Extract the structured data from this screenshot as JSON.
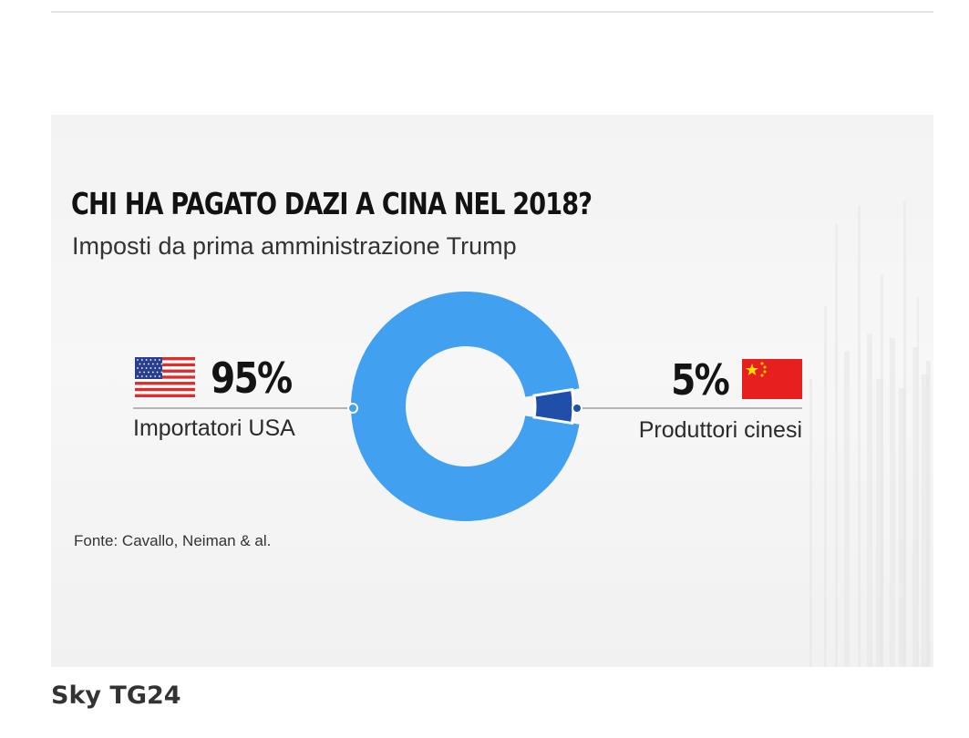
{
  "infographic": {
    "title": "CHI HA PAGATO  DAZI A CINA NEL 2018?",
    "subtitle": "Imposti da prima amministrazione Trump",
    "source": "Fonte: Cavallo, Neiman  & al."
  },
  "chart_data": {
    "type": "pie",
    "style": "donut",
    "title": "CHI HA PAGATO  DAZI A CINA NEL 2018?",
    "subtitle": "Imposti da prima amministrazione Trump",
    "slices": [
      {
        "label": "Importatori USA",
        "value": 95,
        "value_label": "95%",
        "color": "#42a0f0",
        "flag": "flag-usa-icon"
      },
      {
        "label": "Produttori cinesi",
        "value": 5,
        "value_label": "5%",
        "color": "#1f4fa8",
        "flag": "flag-china-icon"
      }
    ],
    "source": "Fonte: Cavallo, Neiman  & al."
  },
  "caption": "Sky TG24",
  "colors": {
    "donut_main": "#42a0f0",
    "donut_minor": "#1f4fa8",
    "leader_line": "#b4b4b4",
    "flag_red": "#de2b2b",
    "flag_blue": "#2a3f8f",
    "china_red": "#e81f1f",
    "china_star": "#ffde00"
  }
}
